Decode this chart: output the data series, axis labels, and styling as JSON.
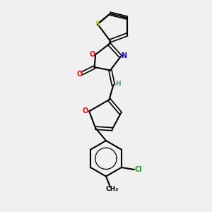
{
  "background_color": "#f0f0f0",
  "bond_color": "#000000",
  "atom_colors": {
    "S": "#cccc00",
    "O": "#ff0000",
    "N": "#0000ff",
    "Cl": "#00aa00",
    "C": "#000000",
    "H": "#4a9090"
  },
  "title": ""
}
